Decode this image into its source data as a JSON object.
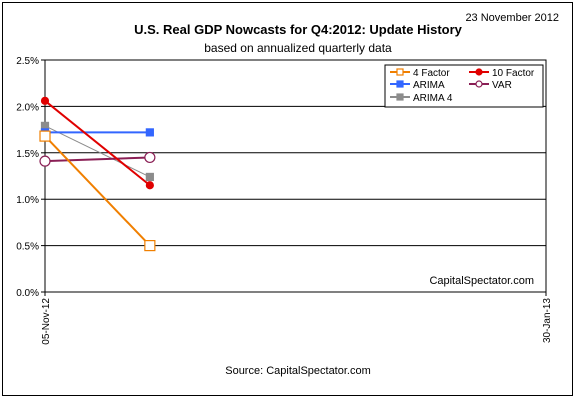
{
  "date_stamp": "23 November 2012",
  "source": "Source: CapitalSpectator.com",
  "watermark": "CapitalSpectator.com",
  "chart_data": {
    "type": "line",
    "title": "U.S. Real GDP Nowcasts for Q4:2012: Update History",
    "subtitle": "based on annualized quarterly data",
    "xlabel": "",
    "ylabel": "",
    "x_ticks": [
      "05-Nov-12",
      "30-Jan-13"
    ],
    "x": [
      "05-Nov-12",
      "23-Nov-12"
    ],
    "xlim": [
      "05-Nov-12",
      "30-Jan-13"
    ],
    "ylim": [
      0,
      2.5
    ],
    "y_ticks": [
      "0.0%",
      "0.5%",
      "1.0%",
      "1.5%",
      "2.0%",
      "2.5%"
    ],
    "grid": "horizontal",
    "legend": "top-right",
    "series": [
      {
        "name": "4 Factor",
        "values": [
          1.68,
          0.5
        ],
        "color": "#f07f00",
        "marker": "square-open"
      },
      {
        "name": "10 Factor",
        "values": [
          2.06,
          1.15
        ],
        "color": "#e00000",
        "marker": "circle-filled"
      },
      {
        "name": "ARIMA",
        "values": [
          1.72,
          1.72
        ],
        "color": "#3366ff",
        "marker": "square-filled"
      },
      {
        "name": "VAR",
        "values": [
          1.41,
          1.45
        ],
        "color": "#8a1f55",
        "marker": "circle-open"
      },
      {
        "name": "ARIMA 4",
        "values": [
          1.79,
          1.24
        ],
        "color": "#8c8c8c",
        "marker": "square-filled"
      }
    ]
  }
}
